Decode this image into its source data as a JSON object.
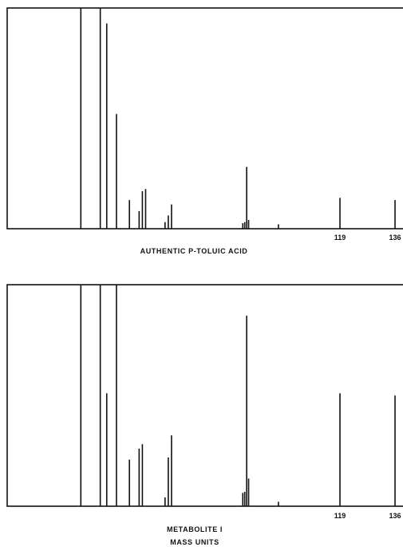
{
  "chart_data": [
    {
      "type": "bar",
      "subtype": "mass-spectrum",
      "title": "AUTHENTIC P-TOLUIC ACID",
      "xlabel": "",
      "ylabel": "",
      "tick_labels": [
        "119",
        "136"
      ],
      "xlim": [
        39,
        137
      ],
      "ylim": [
        0,
        100
      ],
      "grid": false,
      "peaks": [
        {
          "x": 39,
          "y": 100
        },
        {
          "x": 45,
          "y": 100
        },
        {
          "x": 47,
          "y": 93
        },
        {
          "x": 50,
          "y": 52
        },
        {
          "x": 54,
          "y": 13
        },
        {
          "x": 57,
          "y": 8
        },
        {
          "x": 58,
          "y": 17
        },
        {
          "x": 59,
          "y": 18
        },
        {
          "x": 65,
          "y": 3
        },
        {
          "x": 66,
          "y": 6
        },
        {
          "x": 67,
          "y": 11
        },
        {
          "x": 89,
          "y": 2.5
        },
        {
          "x": 89.6,
          "y": 3
        },
        {
          "x": 90.2,
          "y": 28
        },
        {
          "x": 90.8,
          "y": 4
        },
        {
          "x": 100,
          "y": 2
        },
        {
          "x": 119,
          "y": 14
        },
        {
          "x": 136,
          "y": 13
        }
      ]
    },
    {
      "type": "bar",
      "subtype": "mass-spectrum",
      "title": "METABOLITE I",
      "xlabel": "MASS UNITS",
      "ylabel": "",
      "tick_labels": [
        "119",
        "136"
      ],
      "xlim": [
        39,
        137
      ],
      "ylim": [
        0,
        100
      ],
      "grid": false,
      "peaks": [
        {
          "x": 39,
          "y": 100
        },
        {
          "x": 45,
          "y": 100
        },
        {
          "x": 47,
          "y": 51
        },
        {
          "x": 50,
          "y": 100
        },
        {
          "x": 54,
          "y": 21
        },
        {
          "x": 57,
          "y": 26
        },
        {
          "x": 58,
          "y": 28
        },
        {
          "x": 65,
          "y": 4
        },
        {
          "x": 66,
          "y": 22
        },
        {
          "x": 67,
          "y": 32
        },
        {
          "x": 89,
          "y": 6
        },
        {
          "x": 89.6,
          "y": 6.5
        },
        {
          "x": 90.2,
          "y": 86
        },
        {
          "x": 90.8,
          "y": 12.5
        },
        {
          "x": 100,
          "y": 2
        },
        {
          "x": 119,
          "y": 51
        },
        {
          "x": 136,
          "y": 50
        }
      ]
    }
  ]
}
